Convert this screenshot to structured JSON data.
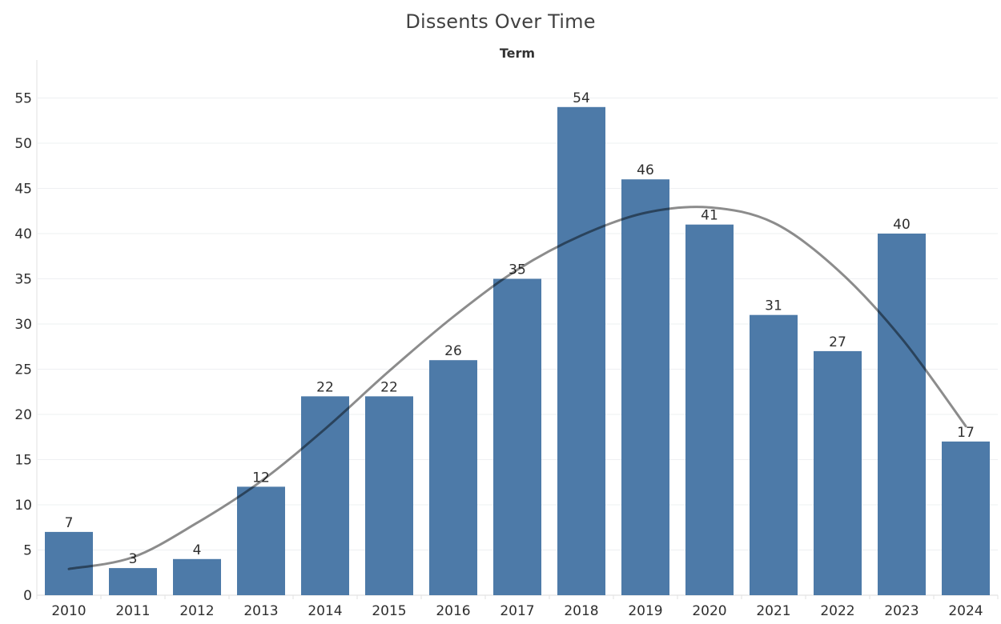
{
  "title": "Dissents Over Time",
  "chart_data": {
    "type": "bar",
    "title": "Dissents Over Time",
    "xlabel": "Term",
    "ylabel": "",
    "categories": [
      "2010",
      "2011",
      "2012",
      "2013",
      "2014",
      "2015",
      "2016",
      "2017",
      "2018",
      "2019",
      "2020",
      "2021",
      "2022",
      "2023",
      "2024"
    ],
    "values": [
      7,
      3,
      4,
      12,
      22,
      22,
      26,
      35,
      54,
      46,
      41,
      31,
      27,
      40,
      17
    ],
    "bar_value_labels_shown": true,
    "y_ticks": [
      0,
      5,
      10,
      15,
      20,
      25,
      30,
      35,
      40,
      45,
      50,
      55
    ],
    "ylim": [
      0,
      59
    ],
    "grid": "horizontal",
    "legend_position": "none",
    "trend_line": {
      "name": "polynomial-trend-line",
      "points": [
        [
          2010,
          2.9
        ],
        [
          2011,
          4.2
        ],
        [
          2012,
          8.0
        ],
        [
          2013,
          12.6
        ],
        [
          2014,
          18.4
        ],
        [
          2015,
          24.8
        ],
        [
          2016,
          30.8
        ],
        [
          2017,
          36.0
        ],
        [
          2018,
          39.8
        ],
        [
          2019,
          42.3
        ],
        [
          2020,
          42.9
        ],
        [
          2021,
          41.2
        ],
        [
          2022,
          36.0
        ],
        [
          2023,
          28.4
        ],
        [
          2024,
          18.7
        ]
      ]
    },
    "colors": {
      "bar": "#4d7aa8",
      "trend_line": "rgba(0,0,0,0.45)",
      "gridline": "#eef0f2",
      "axis_line": "#e2e2e2",
      "tick_text": "#2e2e2e",
      "title_text": "#414141"
    }
  }
}
